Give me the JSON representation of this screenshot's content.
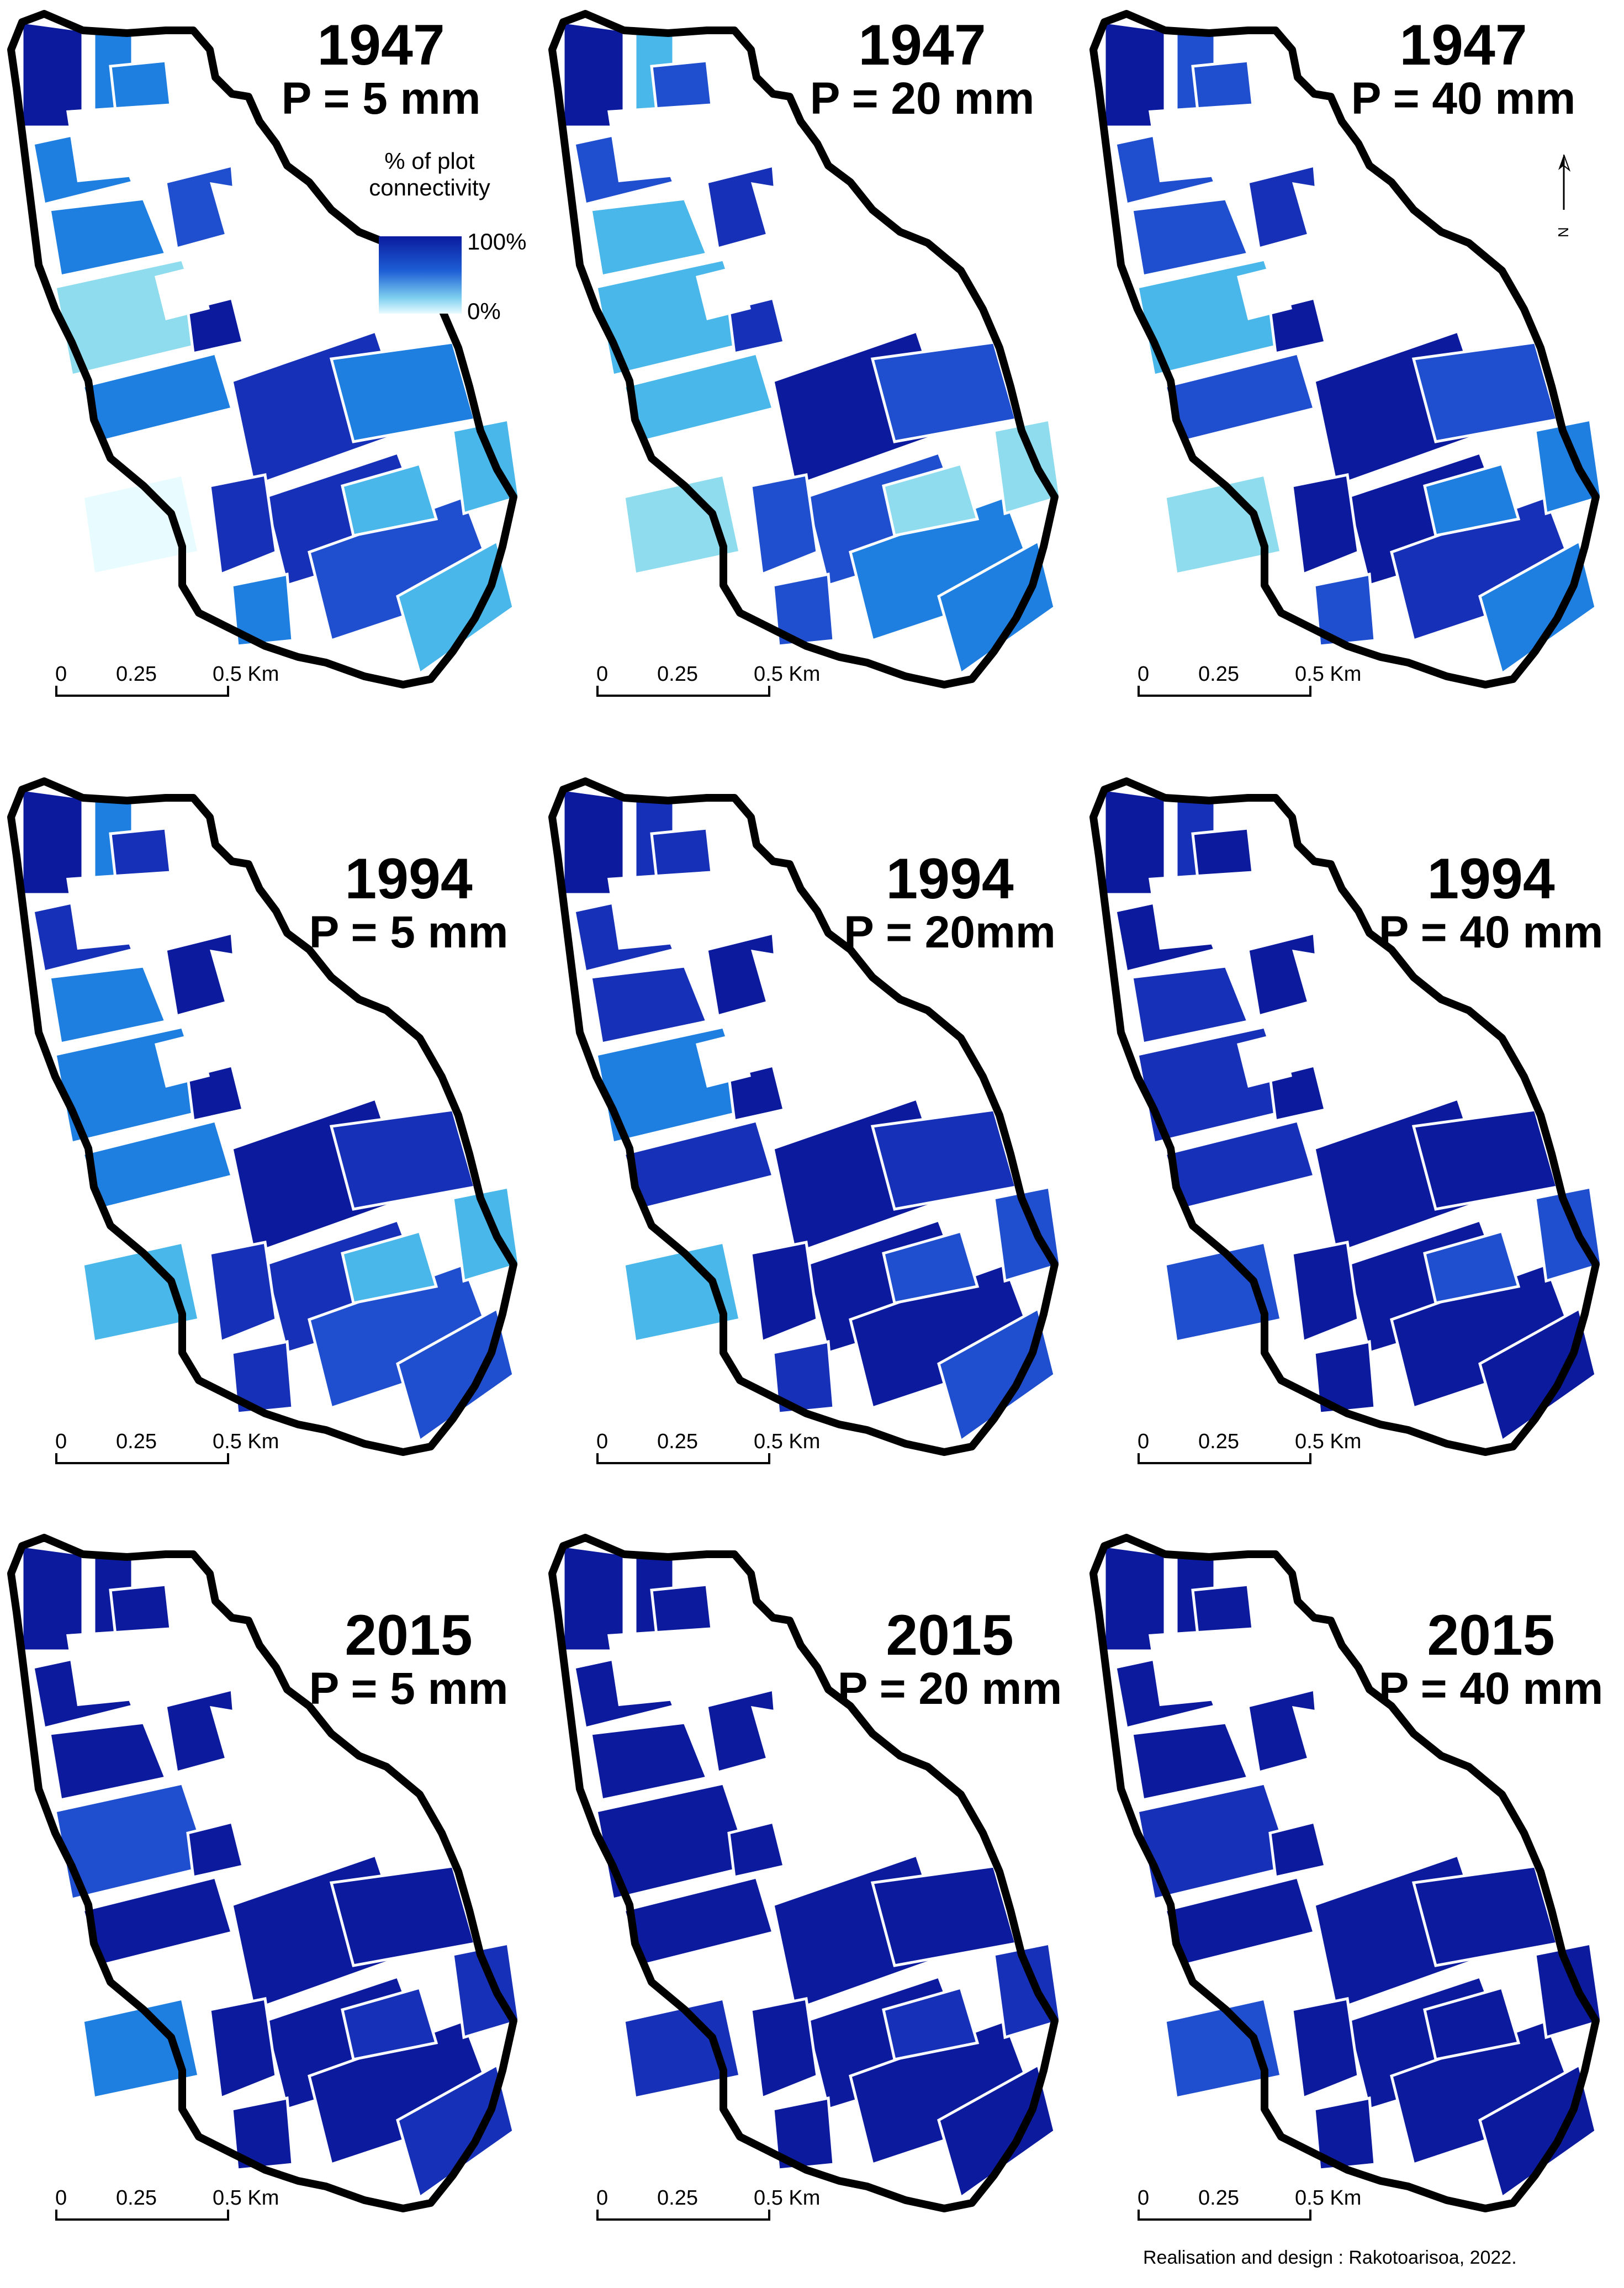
{
  "panels": [
    {
      "year": "1947",
      "precip": "P = 5 mm",
      "level": 0
    },
    {
      "year": "1947",
      "precip": "P = 20 mm",
      "level": 1
    },
    {
      "year": "1947",
      "precip": "P = 40 mm",
      "level": 2
    },
    {
      "year": "1994",
      "precip": "P = 5 mm",
      "level": 3
    },
    {
      "year": "1994",
      "precip": "P = 20mm",
      "level": 4
    },
    {
      "year": "1994",
      "precip": "P = 40 mm",
      "level": 5
    },
    {
      "year": "2015",
      "precip": "P = 5 mm",
      "level": 6
    },
    {
      "year": "2015",
      "precip": "P = 20 mm",
      "level": 7
    },
    {
      "year": "2015",
      "precip": "P = 40 mm",
      "level": 8
    }
  ],
  "legend": {
    "title": "% of plot connectivity",
    "max": "100%",
    "min": "0%"
  },
  "scalebar": {
    "labels": [
      "0",
      "0.25",
      "0.5 Km"
    ]
  },
  "north_arrow": {
    "label": "N"
  },
  "credit": "Realisation and design : Rakotoarisoa, 2022.",
  "colors": {
    "connectivity_ramp": [
      "#e8fbff",
      "#8fdcef",
      "#49b7ea",
      "#1e7fe0",
      "#1f4fcf",
      "#1630b8",
      "#0c1a9e"
    ],
    "watershed_outline": "#000000"
  }
}
